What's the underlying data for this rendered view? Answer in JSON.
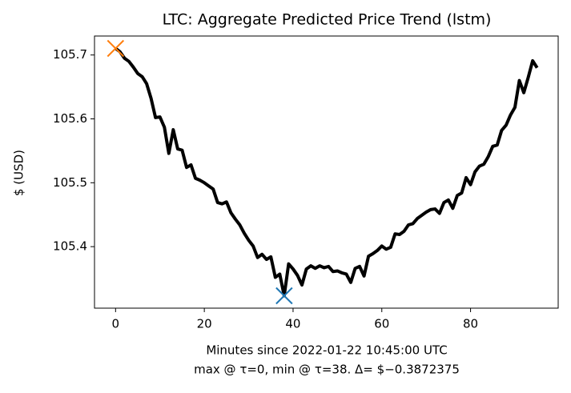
{
  "chart_data": {
    "type": "line",
    "title": "LTC: Aggregate Predicted Price Trend (lstm)",
    "xlabel": [
      "Minutes since 2022-01-22 10:45:00 UTC",
      "max @ τ=0, min @ τ=38. Δ= $−0.3872375"
    ],
    "ylabel": "$ (USD)",
    "x": [
      0,
      1,
      2,
      3,
      4,
      5,
      6,
      7,
      8,
      9,
      10,
      11,
      12,
      13,
      14,
      15,
      16,
      17,
      18,
      19,
      20,
      21,
      22,
      23,
      24,
      25,
      26,
      27,
      28,
      29,
      30,
      31,
      32,
      33,
      34,
      35,
      36,
      37,
      38,
      39,
      40,
      41,
      42,
      43,
      44,
      45,
      46,
      47,
      48,
      49,
      50,
      51,
      52,
      53,
      54,
      55,
      56,
      57,
      58,
      59,
      60,
      61,
      62,
      63,
      64,
      65,
      66,
      67,
      68,
      69,
      70,
      71,
      72,
      73,
      74,
      75,
      76,
      77,
      78,
      79,
      80,
      81,
      82,
      83,
      84,
      85,
      86,
      87,
      88,
      89,
      90,
      91,
      92,
      93,
      94,
      95
    ],
    "series": [
      {
        "name": "lstm",
        "color": "#000000",
        "values": [
          105.7103,
          105.705,
          105.695,
          105.69,
          105.681,
          105.671,
          105.666,
          105.655,
          105.632,
          105.602,
          105.603,
          105.587,
          105.546,
          105.583,
          105.553,
          105.551,
          105.524,
          105.528,
          105.507,
          105.504,
          105.5,
          105.495,
          105.49,
          105.469,
          105.467,
          105.47,
          105.453,
          105.443,
          105.434,
          105.421,
          105.41,
          105.401,
          105.383,
          105.388,
          105.38,
          105.384,
          105.352,
          105.357,
          105.3231,
          105.373,
          105.365,
          105.355,
          105.34,
          105.365,
          105.37,
          105.366,
          105.37,
          105.367,
          105.369,
          105.361,
          105.362,
          105.359,
          105.357,
          105.344,
          105.366,
          105.369,
          105.354,
          105.385,
          105.389,
          105.394,
          105.401,
          105.396,
          105.399,
          105.42,
          105.419,
          105.424,
          105.434,
          105.436,
          105.444,
          105.449,
          105.454,
          105.458,
          105.459,
          105.452,
          105.469,
          105.473,
          105.46,
          105.48,
          105.484,
          105.508,
          105.497,
          105.517,
          105.526,
          105.529,
          105.541,
          105.557,
          105.559,
          105.582,
          105.59,
          105.606,
          105.618,
          105.66,
          105.641,
          105.665,
          105.691,
          105.68
        ]
      }
    ],
    "markers": [
      {
        "x": 0,
        "y": 105.7103,
        "color": "#ff7f0e"
      },
      {
        "x": 38,
        "y": 105.3231,
        "color": "#1f77b4"
      }
    ],
    "xlim": [
      -4.75,
      99.75
    ],
    "xticks": [
      0,
      20,
      40,
      60,
      80
    ],
    "ylim": [
      105.3037,
      105.7297
    ],
    "yticks": [
      105.4,
      105.5,
      105.6,
      105.7
    ],
    "grid": false
  }
}
